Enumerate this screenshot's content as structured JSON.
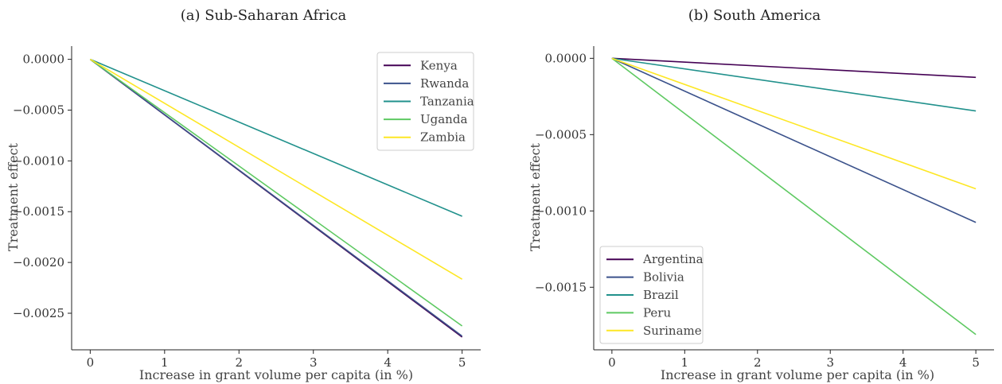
{
  "chart_data": [
    {
      "type": "line",
      "title": "(a) Sub-Saharan Africa",
      "xlabel": "Increase in grant volume per capita (in %)",
      "ylabel": "Treatment effect",
      "xlim": [
        -0.25,
        5.25
      ],
      "ylim": [
        -0.00286,
        0.00013
      ],
      "xticks": [
        0,
        1,
        2,
        3,
        4,
        5
      ],
      "xtick_labels": [
        "0",
        "1",
        "2",
        "3",
        "4",
        "5"
      ],
      "yticks": [
        0.0,
        -0.0005,
        -0.001,
        -0.0015,
        -0.002,
        -0.0025
      ],
      "ytick_labels": [
        "0.0000",
        "−0.0005",
        "−0.0010",
        "−0.0015",
        "−0.0020",
        "−0.0025"
      ],
      "legend_position": "top-right",
      "grid": false,
      "x": [
        0,
        5
      ],
      "series": [
        {
          "name": "Kenya",
          "color": "#440154",
          "values": [
            0,
            -0.002735
          ]
        },
        {
          "name": "Rwanda",
          "color": "#3b528b",
          "values": [
            0,
            -0.002725
          ]
        },
        {
          "name": "Tanzania",
          "color": "#21918c",
          "values": [
            0,
            -0.001545
          ]
        },
        {
          "name": "Uganda",
          "color": "#5ec962",
          "values": [
            0,
            -0.002625
          ]
        },
        {
          "name": "Zambia",
          "color": "#fde725",
          "values": [
            0,
            -0.002165
          ]
        }
      ]
    },
    {
      "type": "line",
      "title": "(b) South America",
      "xlabel": "Increase in grant volume per capita (in %)",
      "ylabel": "Treatment effect",
      "xlim": [
        -0.25,
        5.25
      ],
      "ylim": [
        -0.00191,
        8e-05
      ],
      "xticks": [
        0,
        1,
        2,
        3,
        4,
        5
      ],
      "xtick_labels": [
        "0",
        "1",
        "2",
        "3",
        "4",
        "5"
      ],
      "yticks": [
        0.0,
        -0.0005,
        -0.001,
        -0.0015
      ],
      "ytick_labels": [
        "0.0000",
        "−0.0005",
        "−0.0010",
        "−0.0015"
      ],
      "legend_position": "bottom-left",
      "grid": false,
      "x": [
        0,
        5
      ],
      "series": [
        {
          "name": "Argentina",
          "color": "#440154",
          "values": [
            0,
            -0.000125
          ]
        },
        {
          "name": "Bolivia",
          "color": "#3b528b",
          "values": [
            0,
            -0.001075
          ]
        },
        {
          "name": "Brazil",
          "color": "#21918c",
          "values": [
            0,
            -0.000345
          ]
        },
        {
          "name": "Peru",
          "color": "#5ec962",
          "values": [
            0,
            -0.00181
          ]
        },
        {
          "name": "Suriname",
          "color": "#fde725",
          "values": [
            0,
            -0.000855
          ]
        }
      ]
    }
  ]
}
